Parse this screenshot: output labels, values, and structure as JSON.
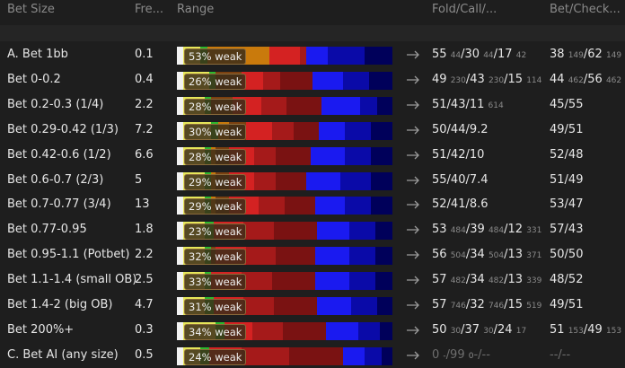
{
  "header": {
    "columns": [
      "Bet Size",
      "Fre...",
      "Range",
      "Fold/Call/...",
      "Bet/Check..."
    ]
  },
  "segment_colors": [
    "#f2f2f2",
    "#e6e65a",
    "#2db82d",
    "#c97a0c",
    "#7a4010",
    "#d42222",
    "#a51a1a",
    "#7a1212",
    "#1a1af0",
    "#0a0aa8",
    "#00005a"
  ],
  "rows": [
    {
      "name": "A. Bet 1bb",
      "freq": "0.1",
      "pill": "53% weak",
      "segments": [
        3,
        8,
        3,
        29,
        0,
        14,
        3,
        0,
        10,
        17,
        13
      ],
      "fold_call": [
        [
          "55",
          "44"
        ],
        [
          "/30",
          "44"
        ],
        [
          "/17",
          "42"
        ]
      ],
      "bet_check": [
        [
          "38",
          "149"
        ],
        [
          "/62",
          "149"
        ]
      ]
    },
    {
      "name": "Bet 0-0.2",
      "freq": "0.4",
      "pill": "26% weak",
      "segments": [
        3,
        12,
        3,
        0,
        12,
        10,
        8,
        15,
        14,
        12,
        11
      ],
      "fold_call": [
        [
          "49",
          "230"
        ],
        [
          "/43",
          "230"
        ],
        [
          "/15",
          "114"
        ]
      ],
      "bet_check": [
        [
          "44",
          "462"
        ],
        [
          "/56",
          "462"
        ]
      ]
    },
    {
      "name": "Bet 0.2-0.3 (1/4)",
      "freq": "2.2",
      "pill": "28% weak",
      "segments": [
        3,
        10,
        3,
        0,
        10,
        13,
        12,
        16,
        18,
        8,
        7
      ],
      "fold_call": [
        [
          "51/43/11",
          "614"
        ]
      ],
      "bet_check": [
        [
          "45/55"
        ]
      ]
    },
    {
      "name": "Bet 0.29-0.42 (1/3)",
      "freq": "7.2",
      "pill": "30% weak",
      "segments": [
        3,
        13,
        3,
        5,
        8,
        12,
        10,
        12,
        12,
        12,
        10
      ],
      "fold_call": [
        [
          "50/44/9.2"
        ]
      ],
      "bet_check": [
        [
          "49/51"
        ]
      ]
    },
    {
      "name": "Bet 0.42-0.6 (1/2)",
      "freq": "6.6",
      "pill": "28% weak",
      "segments": [
        3,
        10,
        3,
        2,
        6,
        12,
        10,
        16,
        16,
        12,
        10
      ],
      "fold_call": [
        [
          "51/42/10"
        ]
      ],
      "bet_check": [
        [
          "52/48"
        ]
      ]
    },
    {
      "name": "Bet 0.6-0.7 (2/3)",
      "freq": "5",
      "pill": "29% weak",
      "segments": [
        3,
        10,
        3,
        2,
        6,
        12,
        10,
        14,
        16,
        14,
        10
      ],
      "fold_call": [
        [
          "55/40/7.4"
        ]
      ],
      "bet_check": [
        [
          "51/49"
        ]
      ]
    },
    {
      "name": "Bet 0.7-0.77 (3/4)",
      "freq": "13",
      "pill": "29% weak",
      "segments": [
        3,
        10,
        3,
        2,
        6,
        14,
        12,
        14,
        14,
        12,
        10
      ],
      "fold_call": [
        [
          "52/41/8.6"
        ]
      ],
      "bet_check": [
        [
          "53/47"
        ]
      ]
    },
    {
      "name": "Bet 0.77-0.95",
      "freq": "1.8",
      "pill": "23% weak",
      "segments": [
        3,
        10,
        4,
        0,
        0,
        14,
        14,
        20,
        15,
        12,
        8
      ],
      "fold_call": [
        [
          "53",
          "484"
        ],
        [
          "/39",
          "484"
        ],
        [
          "/12",
          "331"
        ]
      ],
      "bet_check": [
        [
          "57/43"
        ]
      ]
    },
    {
      "name": "Bet 0.95-1.1 (Potbet)",
      "freq": "2.2",
      "pill": "32% weak",
      "segments": [
        3,
        10,
        3,
        0,
        2,
        14,
        14,
        18,
        16,
        12,
        8
      ],
      "fold_call": [
        [
          "56",
          "504"
        ],
        [
          "/34",
          "504"
        ],
        [
          "/13",
          "371"
        ]
      ],
      "bet_check": [
        [
          "50/50"
        ]
      ]
    },
    {
      "name": "Bet 1.1-1.4 (small OB)",
      "freq": "2.5",
      "pill": "33% weak",
      "segments": [
        3,
        10,
        3,
        0,
        0,
        14,
        14,
        20,
        16,
        12,
        8
      ],
      "fold_call": [
        [
          "57",
          "482"
        ],
        [
          "/34",
          "482"
        ],
        [
          "/13",
          "339"
        ]
      ],
      "bet_check": [
        [
          "48/52"
        ]
      ]
    },
    {
      "name": "Bet 1.4-2 (big OB)",
      "freq": "4.7",
      "pill": "31% weak",
      "segments": [
        3,
        10,
        4,
        0,
        0,
        14,
        14,
        20,
        16,
        12,
        7
      ],
      "fold_call": [
        [
          "57",
          "746"
        ],
        [
          "/32",
          "746"
        ],
        [
          "/15",
          "519"
        ]
      ],
      "bet_check": [
        [
          "49/51"
        ]
      ]
    },
    {
      "name": "Bet 200%+",
      "freq": "0.3",
      "pill": "34% weak",
      "segments": [
        3,
        15,
        4,
        0,
        0,
        13,
        14,
        20,
        15,
        10,
        6
      ],
      "fold_call": [
        [
          "50",
          "30"
        ],
        [
          "/37",
          "30"
        ],
        [
          "/24",
          "17"
        ]
      ],
      "bet_check": [
        [
          "51",
          "153"
        ],
        [
          "/49",
          "153"
        ]
      ]
    },
    {
      "name": "C. Bet AI (any size)",
      "freq": "0.5",
      "pill": "24% weak",
      "segments": [
        3,
        8,
        4,
        0,
        0,
        15,
        22,
        25,
        10,
        8,
        5
      ],
      "fold_call": [
        [
          "0",
          "-"
        ],
        [
          "/99",
          "0"
        ],
        [
          "-/--"
        ]
      ],
      "bet_check": [
        [
          "--/--"
        ]
      ],
      "results_color": "#6e6e6e"
    }
  ]
}
